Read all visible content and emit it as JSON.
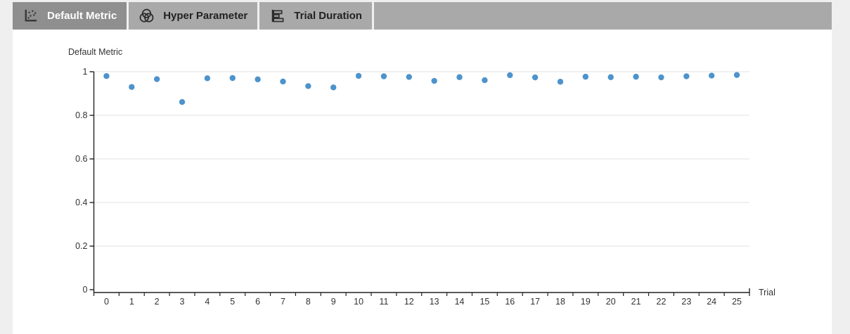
{
  "colors": {
    "page_bg": "#efefef",
    "tab_bar_bg": "#a9a9a9",
    "active_tab_bg": "#8f8f8f",
    "active_tab_text": "#ffffff",
    "inactive_tab_text": "#222222",
    "axis": "#222222",
    "tick_text": "#333333",
    "grid": "#e0e0e0",
    "point": "#4d93cc"
  },
  "tab_bar": {
    "tabs": [
      {
        "label": "Default Metric",
        "icon": "scatter-plot-icon",
        "active": true
      },
      {
        "label": "Hyper Parameter",
        "icon": "venn-diagram-icon",
        "active": false
      },
      {
        "label": "Trial Duration",
        "icon": "bar-chart-icon",
        "active": false
      }
    ]
  },
  "chart_data": {
    "type": "scatter",
    "title": "Default Metric",
    "xlabel": "Trial",
    "ylabel": "Default Metric",
    "x": [
      0,
      1,
      2,
      3,
      4,
      5,
      6,
      7,
      8,
      9,
      10,
      11,
      12,
      13,
      14,
      15,
      16,
      17,
      18,
      19,
      20,
      21,
      22,
      23,
      24,
      25
    ],
    "y": [
      0.98,
      0.93,
      0.966,
      0.861,
      0.97,
      0.971,
      0.965,
      0.955,
      0.934,
      0.928,
      0.981,
      0.979,
      0.976,
      0.958,
      0.975,
      0.961,
      0.984,
      0.974,
      0.954,
      0.977,
      0.975,
      0.977,
      0.974,
      0.979,
      0.982,
      0.985
    ],
    "xtick_labels": [
      "0",
      "1",
      "2",
      "3",
      "4",
      "5",
      "6",
      "7",
      "8",
      "9",
      "10",
      "11",
      "12",
      "13",
      "14",
      "15",
      "16",
      "17",
      "18",
      "19",
      "20",
      "21",
      "22",
      "23",
      "24",
      "25"
    ],
    "yticks": [
      0,
      0.2,
      0.4,
      0.6,
      0.8,
      1
    ],
    "ytick_labels": [
      "0",
      "0.2",
      "0.4",
      "0.6",
      "0.8",
      "1"
    ],
    "ylim": [
      0,
      1
    ],
    "grid": true,
    "legend": "none",
    "point_color": "#4d93cc"
  }
}
